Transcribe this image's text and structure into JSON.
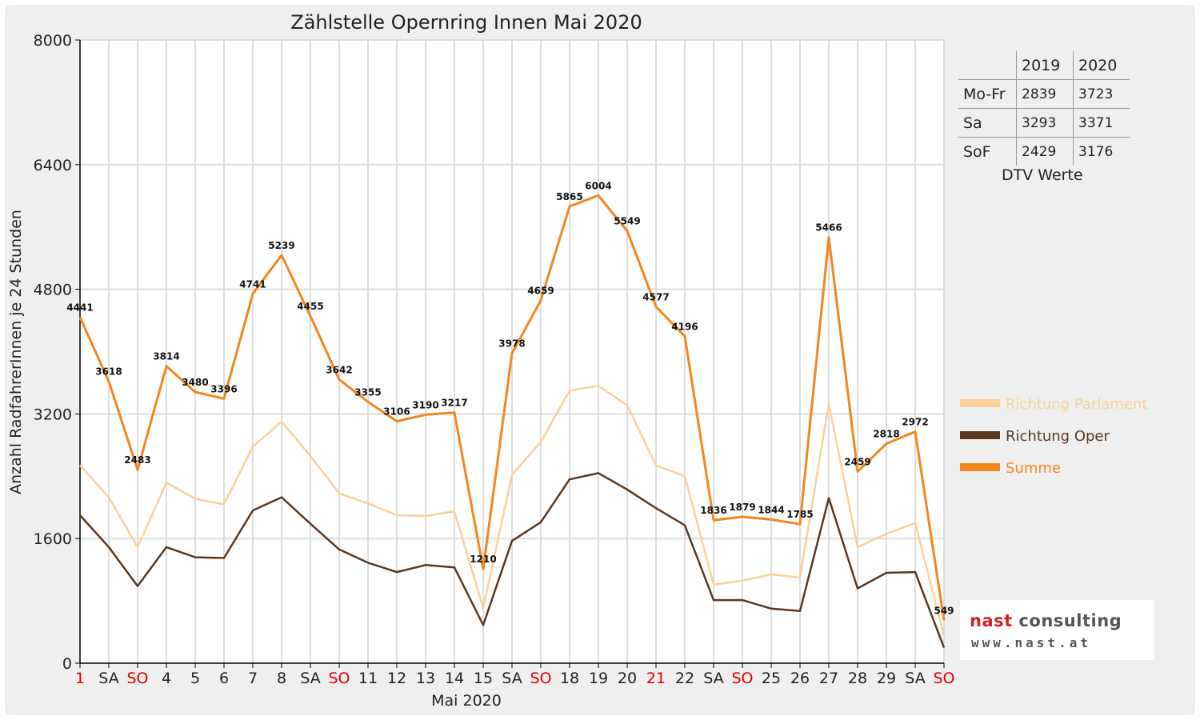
{
  "chart_data": {
    "type": "line",
    "title": "Zählstelle Opernring Innen Mai 2020",
    "xlabel": "Mai 2020",
    "ylabel": "Anzahl RadfahrerInnen je 24 Stunden",
    "ylim": [
      0,
      8000
    ],
    "yticks": [
      0,
      1600,
      3200,
      4800,
      6400,
      8000
    ],
    "grid": true,
    "legend_position": "right",
    "categories": [
      "1",
      "SA",
      "SO",
      "4",
      "5",
      "6",
      "7",
      "8",
      "SA",
      "SO",
      "11",
      "12",
      "13",
      "14",
      "15",
      "SA",
      "SO",
      "18",
      "19",
      "20",
      "21",
      "22",
      "SA",
      "SO",
      "25",
      "26",
      "27",
      "28",
      "29",
      "SA",
      "SO"
    ],
    "red_categories": [
      0,
      2,
      9,
      16,
      20,
      23,
      30
    ],
    "series": [
      {
        "name": "Richtung Parlament",
        "color": "#fbd09a",
        "values": [
          2540,
          2130,
          1490,
          2320,
          2110,
          2040,
          2780,
          3100,
          2660,
          2180,
          2050,
          1900,
          1890,
          1950,
          710,
          2420,
          2840,
          3500,
          3560,
          3310,
          2540,
          2400,
          1010,
          1060,
          1140,
          1100,
          3330,
          1490,
          1660,
          1800,
          350
        ]
      },
      {
        "name": "Richtung Oper",
        "color": "#5b3820",
        "values": [
          1900,
          1490,
          990,
          1490,
          1360,
          1350,
          1960,
          2130,
          1790,
          1460,
          1290,
          1170,
          1260,
          1230,
          490,
          1570,
          1810,
          2360,
          2440,
          2230,
          1990,
          1770,
          810,
          810,
          700,
          670,
          2120,
          960,
          1160,
          1170,
          200
        ]
      },
      {
        "name": "Summe",
        "color": "#f3861f",
        "values": [
          4441,
          3618,
          2483,
          3814,
          3480,
          3396,
          4741,
          5239,
          4455,
          3642,
          3355,
          3106,
          3190,
          3217,
          1210,
          3978,
          4659,
          5865,
          6004,
          5549,
          4577,
          4196,
          1836,
          1879,
          1844,
          1785,
          5466,
          2459,
          2818,
          2972,
          549
        ]
      }
    ],
    "data_labels_series": "Summe"
  },
  "dtv_table": {
    "years": [
      "2019",
      "2020"
    ],
    "rows": [
      {
        "label": "Mo-Fr",
        "v2019": "2839",
        "v2020": "3723"
      },
      {
        "label": "Sa",
        "v2019": "3293",
        "v2020": "3371"
      },
      {
        "label": "SoF",
        "v2019": "2429",
        "v2020": "3176"
      }
    ],
    "caption": "DTV Werte"
  },
  "logo": {
    "line1_red": "nast",
    "line1_gray": " consulting",
    "line2": "www.nast.at"
  }
}
